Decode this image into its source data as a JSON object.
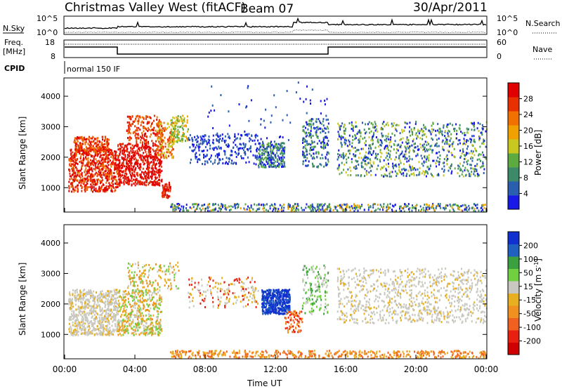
{
  "header": {
    "title": "Christmas Valley West (fitACF)",
    "beam": "Beam 07",
    "date": "30/Apr/2011"
  },
  "side_labels": {
    "nsky": "N.Sky",
    "nsearch": "N.Search",
    "freq": "Freq.",
    "freq_unit": "[MHz]",
    "nave": "Nave",
    "cpid": "CPID"
  },
  "cpid_value": "normal 150 IF",
  "colors": {
    "power_scale": [
      "#1818e8",
      "#2a5fb0",
      "#3c8a6a",
      "#5caa40",
      "#c8c820",
      "#f0a000",
      "#f07000",
      "#e83000",
      "#e00000"
    ],
    "velocity_scale": [
      "#1030d0",
      "#2060c0",
      "#3aa040",
      "#70d040",
      "#c8c8c0",
      "#e8b020",
      "#f09020",
      "#f06020",
      "#e82010",
      "#d00000"
    ]
  },
  "chart_data": [
    {
      "type": "line",
      "name": "noise_panel",
      "series": [
        {
          "name": "N.Sky"
        },
        {
          "name": "N.Search"
        }
      ],
      "ytick_labels_left": [
        "10^5",
        "10^0"
      ],
      "ytick_labels_right": [
        "10^5",
        "10^0"
      ]
    },
    {
      "type": "line",
      "name": "freq_nave_panel",
      "series": [
        {
          "name": "Freq.",
          "x": [
            0,
            3.0,
            3.0,
            15.0,
            15.0,
            24
          ],
          "y": [
            14,
            14,
            10,
            10,
            14,
            14
          ]
        },
        {
          "name": "Nave"
        }
      ],
      "ytick_labels_left": [
        "18",
        "8"
      ],
      "ytick_labels_right": [
        "60",
        "0"
      ]
    },
    {
      "type": "heatmap",
      "name": "power_panel",
      "ylabel": "Slant Range [km]",
      "yticks": [
        1000,
        2000,
        3000,
        4000
      ],
      "ylim": [
        200,
        4600
      ],
      "xlim": [
        0,
        24
      ],
      "colorbar_label": "Power [dB]",
      "colorbar_ticks": [
        "4",
        "8",
        "12",
        "16",
        "20",
        "24",
        "28"
      ]
    },
    {
      "type": "heatmap",
      "name": "velocity_panel",
      "ylabel": "Slant Range [km]",
      "yticks": [
        1000,
        2000,
        3000,
        4000
      ],
      "ylim": [
        200,
        4600
      ],
      "xlim": [
        0,
        24
      ],
      "xlabel": "Time UT",
      "xtick_labels": [
        "00:00",
        "04:00",
        "08:00",
        "12:00",
        "16:00",
        "20:00",
        "00:00"
      ],
      "colorbar_label": "Velocity [m s",
      "colorbar_label_sup": "-1",
      "colorbar_ticks": [
        "200",
        "100",
        "50",
        "15",
        "-15",
        "-50",
        "-100",
        "-200"
      ]
    }
  ]
}
